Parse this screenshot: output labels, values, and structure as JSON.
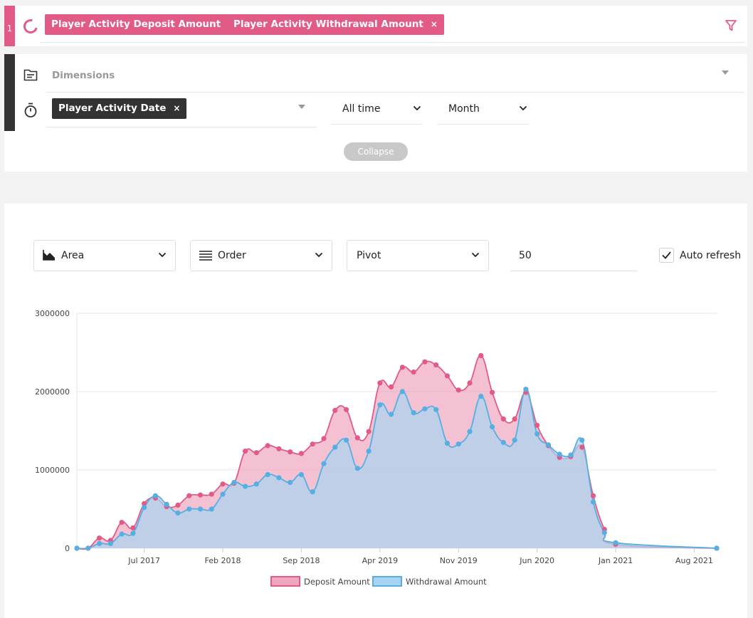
{
  "query": {
    "index": "1",
    "measures": [
      "Player Activity Deposit Amount",
      "Player Activity Withdrawal Amount"
    ],
    "remove_symbol": "×",
    "dimensions_placeholder": "Dimensions",
    "time_dimension": "Player Activity Date",
    "date_range": "All time",
    "granularity": "Month",
    "collapse_label": "Collapse",
    "accent_color": "#e25a86"
  },
  "controls": {
    "chart_type": "Area",
    "order": "Order",
    "pivot": "Pivot",
    "limit": "50",
    "auto_refresh_label": "Auto refresh",
    "auto_refresh_checked": true
  },
  "chart_data": {
    "type": "area",
    "x": [
      "2017-01",
      "2017-02",
      "2017-03",
      "2017-04",
      "2017-05",
      "2017-06",
      "2017-07",
      "2017-08",
      "2017-09",
      "2017-10",
      "2017-11",
      "2017-12",
      "2018-01",
      "2018-02",
      "2018-03",
      "2018-04",
      "2018-05",
      "2018-06",
      "2018-07",
      "2018-08",
      "2018-09",
      "2018-10",
      "2018-11",
      "2018-12",
      "2019-01",
      "2019-02",
      "2019-03",
      "2019-04",
      "2019-05",
      "2019-06",
      "2019-07",
      "2019-08",
      "2019-09",
      "2019-10",
      "2019-11",
      "2019-12",
      "2020-01",
      "2020-02",
      "2020-03",
      "2020-04",
      "2020-05",
      "2020-06",
      "2020-07",
      "2020-08",
      "2020-09",
      "2020-10",
      "2020-11",
      "2020-12",
      "2021-01",
      "2021-10"
    ],
    "x_ticks": [
      {
        "x": "2017-07",
        "label": "Jul 2017"
      },
      {
        "x": "2018-02",
        "label": "Feb 2018"
      },
      {
        "x": "2018-09",
        "label": "Sep 2018"
      },
      {
        "x": "2019-04",
        "label": "Apr 2019"
      },
      {
        "x": "2019-11",
        "label": "Nov 2019"
      },
      {
        "x": "2020-06",
        "label": "Jun 2020"
      },
      {
        "x": "2021-01",
        "label": "Jan 2021"
      },
      {
        "x": "2021-08",
        "label": "Aug 2021"
      }
    ],
    "y_ticks": [
      0,
      1000000,
      2000000,
      3000000
    ],
    "ylim": [
      0,
      3000000
    ],
    "series": [
      {
        "name": "Deposit Amount",
        "color": "#e25a86",
        "fill": "#f0a6bf",
        "values": [
          0,
          0,
          130000,
          100000,
          330000,
          260000,
          570000,
          640000,
          530000,
          550000,
          670000,
          680000,
          690000,
          820000,
          830000,
          1240000,
          1220000,
          1310000,
          1270000,
          1230000,
          1210000,
          1330000,
          1400000,
          1760000,
          1770000,
          1410000,
          1490000,
          2110000,
          2060000,
          2310000,
          2250000,
          2380000,
          2340000,
          2200000,
          2020000,
          2110000,
          2460000,
          1990000,
          1650000,
          1650000,
          1990000,
          1570000,
          1310000,
          1160000,
          1170000,
          1290000,
          670000,
          240000,
          50000,
          0
        ]
      },
      {
        "name": "Withdrawal Amount",
        "color": "#55afe2",
        "fill": "#a9d4f1",
        "values": [
          0,
          0,
          60000,
          60000,
          180000,
          190000,
          520000,
          670000,
          560000,
          450000,
          500000,
          500000,
          500000,
          690000,
          840000,
          790000,
          820000,
          940000,
          900000,
          840000,
          940000,
          720000,
          1080000,
          1290000,
          1380000,
          1020000,
          1240000,
          1830000,
          1710000,
          2000000,
          1730000,
          1780000,
          1770000,
          1340000,
          1330000,
          1490000,
          1940000,
          1550000,
          1350000,
          1380000,
          2030000,
          1460000,
          1320000,
          1200000,
          1190000,
          1380000,
          590000,
          200000,
          70000,
          0
        ]
      }
    ]
  }
}
